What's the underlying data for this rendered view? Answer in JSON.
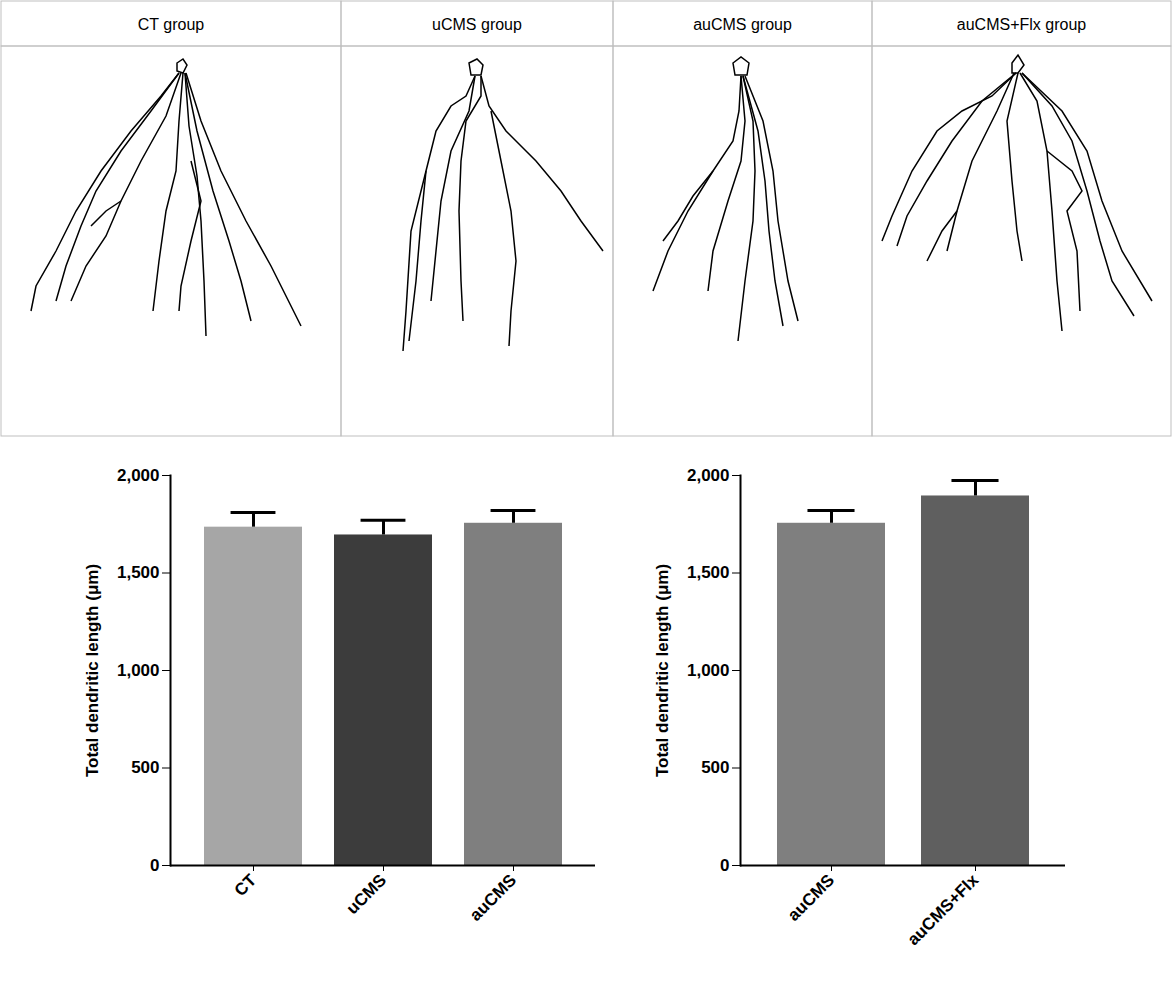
{
  "table": {
    "columns": [
      "CT group",
      "uCMS group",
      "auCMS group",
      "auCMS+Flx group"
    ]
  },
  "chart_data": [
    {
      "type": "bar",
      "y_label": "Total dendritic length (μm)",
      "categories": [
        "CT",
        "uCMS",
        "auCMS"
      ],
      "values": [
        1735,
        1695,
        1755
      ],
      "errors": [
        75,
        75,
        65
      ],
      "colors": [
        "#a6a6a6",
        "#3c3c3c",
        "#7f7f7f"
      ],
      "ylim": [
        0,
        2000
      ],
      "yticks": [
        0,
        500,
        1000,
        1500,
        2000
      ]
    },
    {
      "type": "bar",
      "y_label": "Total dendritic length (μm)",
      "categories": [
        "auCMS",
        "auCMS+Flx"
      ],
      "values": [
        1755,
        1895
      ],
      "errors": [
        65,
        80
      ],
      "colors": [
        "#7f7f7f",
        "#5f5f5f"
      ],
      "ylim": [
        0,
        2000
      ],
      "yticks": [
        0,
        500,
        1000,
        1500,
        2000
      ]
    }
  ]
}
